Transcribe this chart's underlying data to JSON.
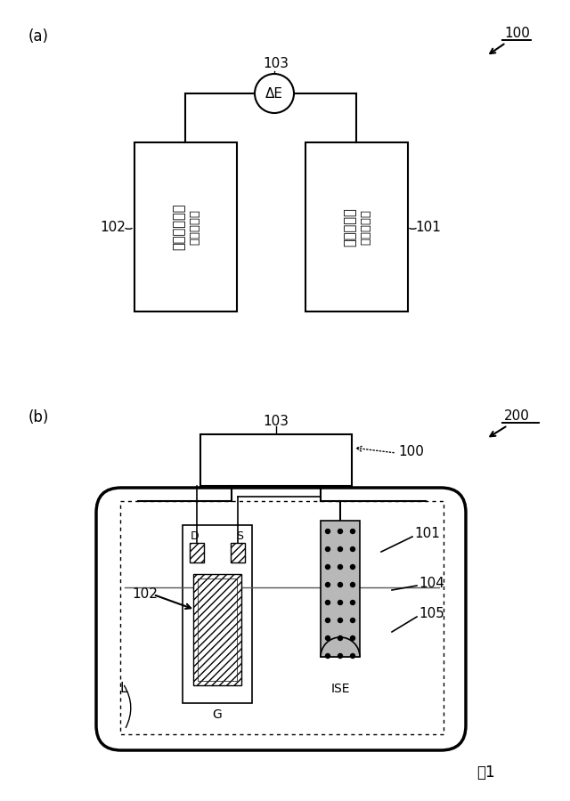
{
  "bg_color": "#ffffff",
  "fig_label": "図1",
  "part_a": {
    "label": "(a)",
    "ref_100": "100",
    "ref_103": "103",
    "ref_102": "102",
    "ref_101": "101",
    "circle_label": "ΔE",
    "box_left_text": "半導体センサ（作用極）",
    "box_right_text": "イオン電極（参照極）"
  },
  "part_b": {
    "label": "(b)",
    "ref_200": "200",
    "ref_103": "103",
    "ref_100": "100",
    "ref_101": "101",
    "ref_102": "102",
    "ref_104": "104",
    "ref_105": "105",
    "label_G": "G",
    "label_ISE": "ISE",
    "label_D": "D",
    "label_S": "S",
    "label_L": "L"
  }
}
